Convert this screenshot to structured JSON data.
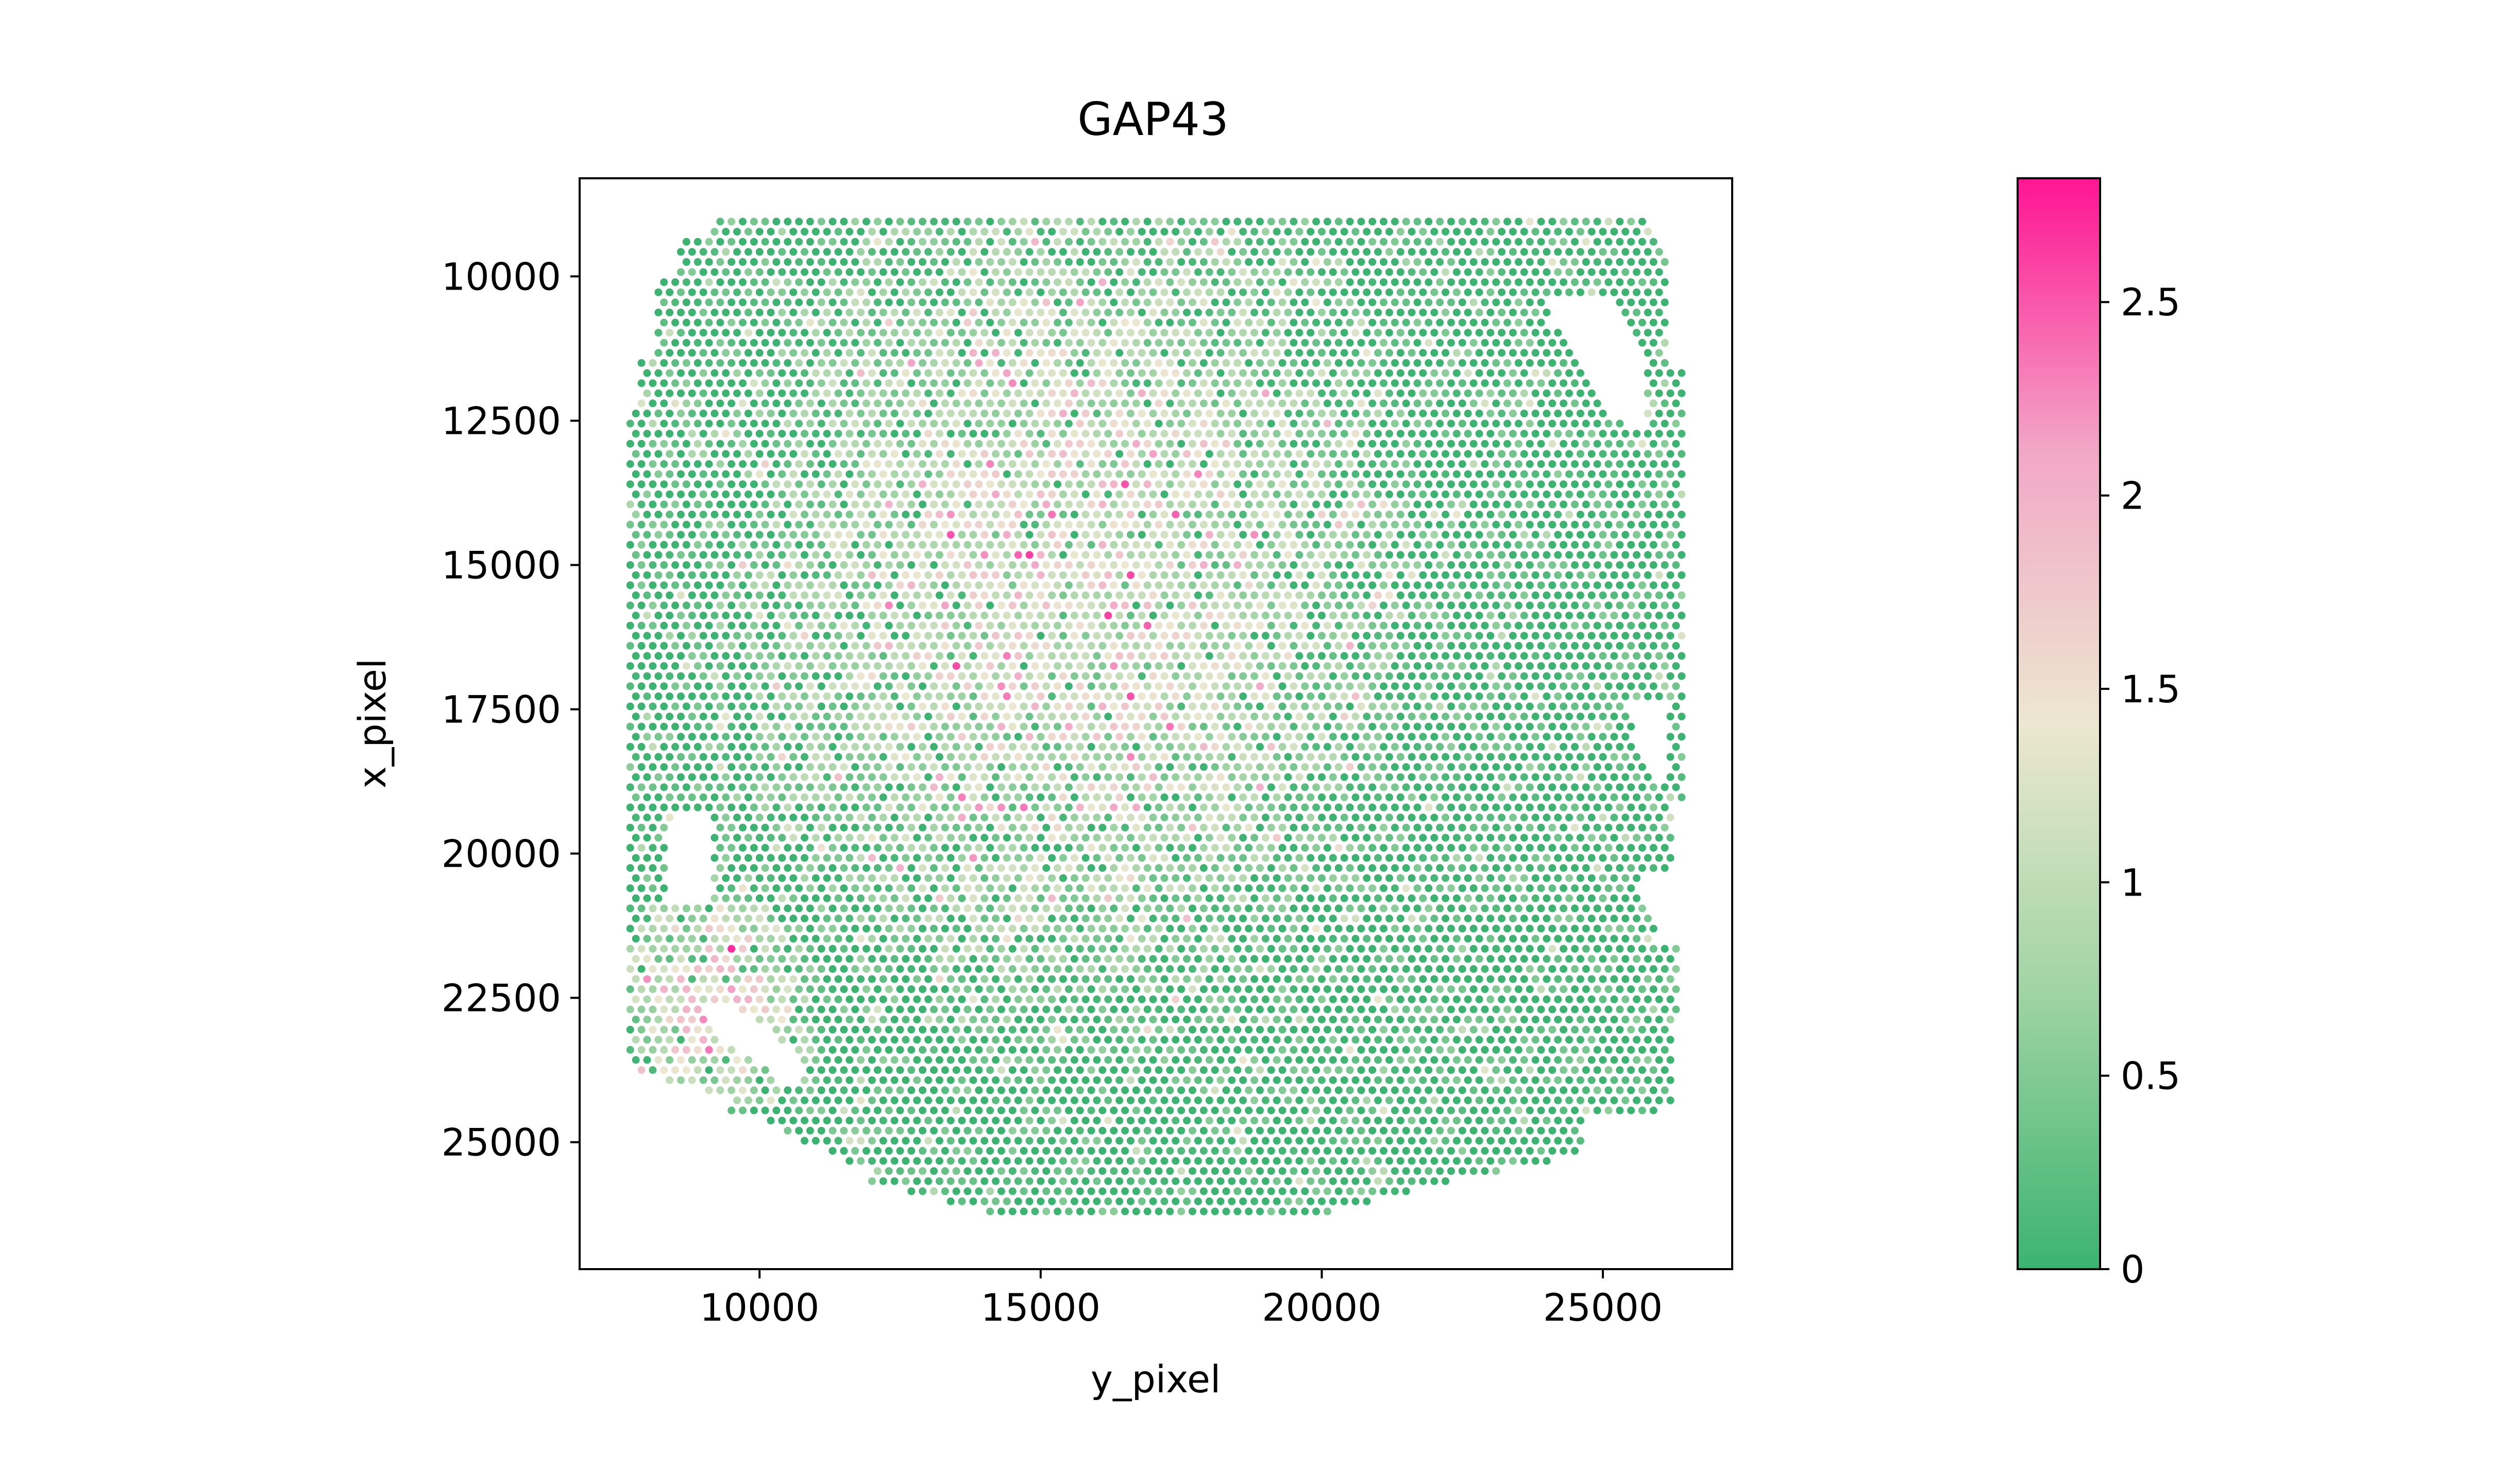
{
  "chart_data": {
    "type": "scatter",
    "title": "GAP43",
    "xlabel": "y_pixel",
    "ylabel": "x_pixel",
    "xlim": [
      6800,
      27300
    ],
    "ylim": [
      27200,
      8300
    ],
    "y_axis_inverted": true,
    "x_ticks": [
      10000,
      15000,
      20000,
      25000
    ],
    "x_tick_labels": [
      "10000",
      "15000",
      "20000",
      "25000"
    ],
    "y_ticks": [
      10000,
      12500,
      15000,
      17500,
      20000,
      22500,
      25000
    ],
    "y_tick_labels": [
      "10000",
      "12500",
      "15000",
      "17500",
      "20000",
      "22500",
      "25000"
    ],
    "grid": false,
    "colorbar": {
      "range": [
        0,
        2.82
      ],
      "ticks": [
        0,
        0.5,
        1,
        1.5,
        2,
        2.5
      ],
      "tick_labels": [
        "0",
        "0.5",
        "1",
        "1.5",
        "2",
        "2.5"
      ],
      "colormap": [
        {
          "value": 0.0,
          "color": "#3cb371"
        },
        {
          "value": 0.5,
          "color": "#9fd3a4"
        },
        {
          "value": 1.0,
          "color": "#ece7d0"
        },
        {
          "value": 1.5,
          "color": "#f2a7c7"
        },
        {
          "value": 2.0,
          "color": "#ff1493"
        }
      ]
    },
    "points": {
      "description_of_extent": "hexagonal lattice of spots covering tissue section",
      "spacing_x": 200,
      "spacing_y": 175,
      "x_range": [
        7700,
        26400
      ],
      "y_range": [
        9050,
        26600
      ],
      "value_pattern": {
        "high_zone_center": [
          13500,
          14000
        ],
        "high_zone_value": 1.2,
        "low_zone_right_value": 0.1,
        "left_bottom_cluster_center": [
          8900,
          23000
        ],
        "left_bottom_cluster_value": 1.7
      }
    }
  }
}
